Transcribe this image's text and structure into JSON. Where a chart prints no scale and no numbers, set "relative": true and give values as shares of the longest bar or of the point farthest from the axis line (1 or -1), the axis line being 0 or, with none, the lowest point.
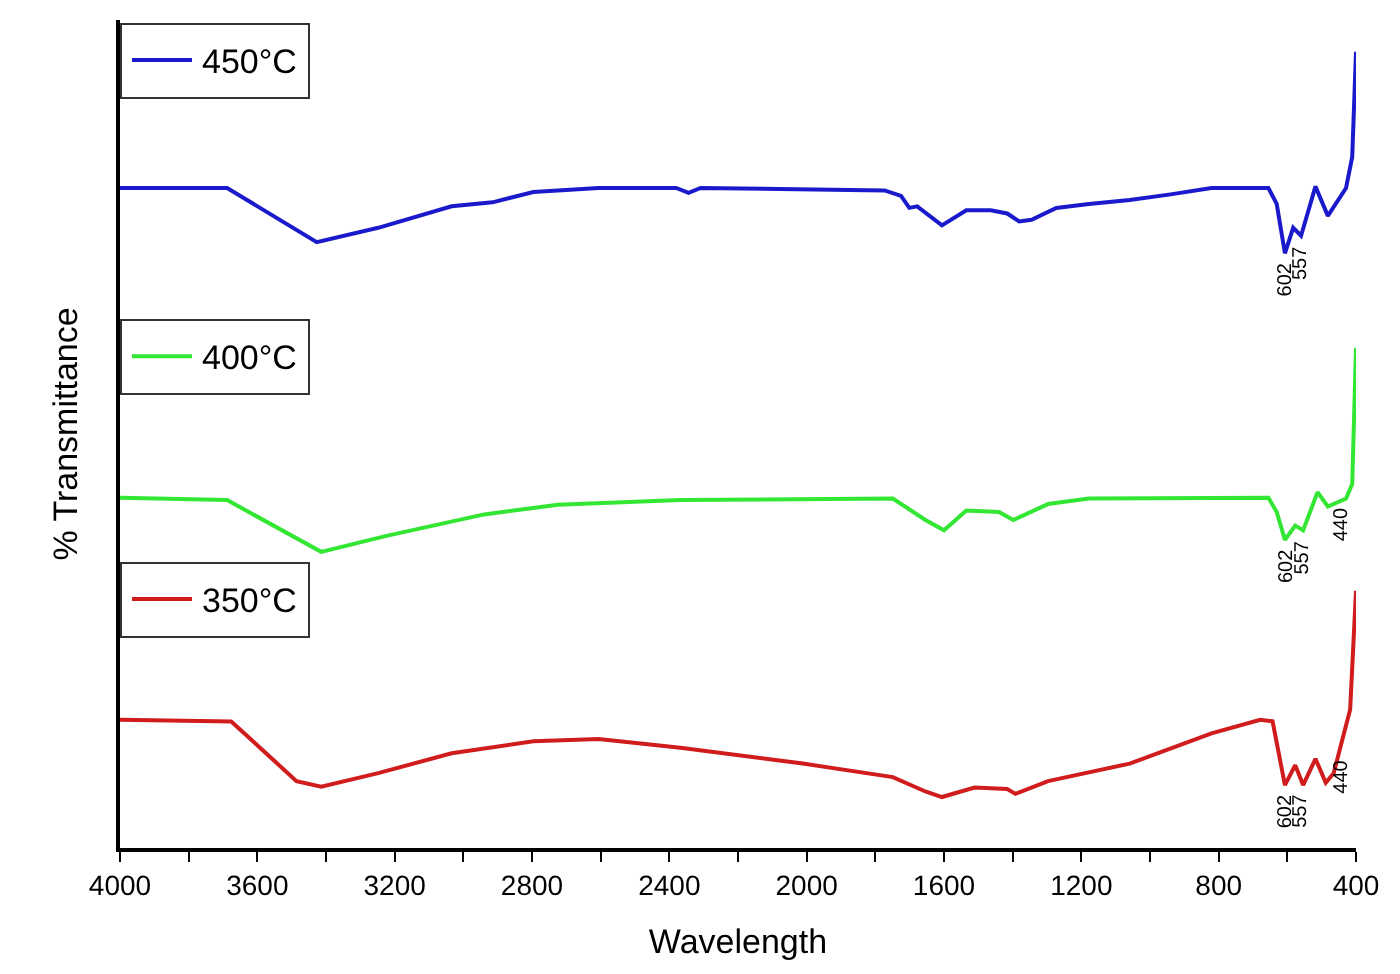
{
  "chart_data": {
    "type": "line",
    "relative": true,
    "xlabel": "Wavelength",
    "ylabel": "% Transmittance",
    "xlim": [
      4000,
      400
    ],
    "xticks": [
      4000,
      {
        "value": 3800,
        "label": null
      },
      3600,
      {
        "value": 3400,
        "label": null
      },
      3200,
      {
        "value": 3000,
        "label": null
      },
      2800,
      {
        "value": 2600,
        "label": null
      },
      2400,
      {
        "value": 2200,
        "label": null
      },
      2000,
      {
        "value": 1800,
        "label": null
      },
      1600,
      {
        "value": 1400,
        "label": null
      },
      1200,
      {
        "value": 1000,
        "label": null
      },
      800,
      {
        "value": 600,
        "label": null
      },
      400
    ],
    "legend": "top left",
    "marker": "none",
    "line_style": "solid",
    "series": [
      {
        "name": "450°C",
        "color": "#1a1acc",
        "x": [
          4000,
          3688,
          3427,
          3248,
          3034,
          2915,
          2796,
          2606,
          2380,
          2344,
          2309,
          1773,
          1725,
          1701,
          1678,
          1606,
          1535,
          1464,
          1416,
          1381,
          1345,
          1273,
          1178,
          1059,
          940,
          821,
          655,
          631,
          607,
          583,
          560,
          518,
          482,
          429,
          411,
          400
        ],
        "values": [
          0.829,
          0.829,
          0.761,
          0.779,
          0.806,
          0.811,
          0.824,
          0.829,
          0.829,
          0.823,
          0.829,
          0.826,
          0.819,
          0.804,
          0.806,
          0.782,
          0.801,
          0.801,
          0.797,
          0.787,
          0.789,
          0.804,
          0.809,
          0.814,
          0.821,
          0.829,
          0.829,
          0.809,
          0.747,
          0.779,
          0.769,
          0.831,
          0.794,
          0.829,
          0.868,
          1.0
        ]
      },
      {
        "name": "400°C",
        "color": "#33e633",
        "x": [
          4000,
          3688,
          3414,
          3224,
          2939,
          2725,
          2368,
          1749,
          1654,
          1600,
          1535,
          1440,
          1398,
          1297,
          1178,
          655,
          631,
          607,
          577,
          554,
          512,
          482,
          429,
          411,
          400
        ],
        "values": [
          0.44,
          0.437,
          0.372,
          0.392,
          0.419,
          0.431,
          0.437,
          0.439,
          0.412,
          0.399,
          0.424,
          0.422,
          0.412,
          0.432,
          0.439,
          0.44,
          0.422,
          0.387,
          0.405,
          0.399,
          0.447,
          0.429,
          0.439,
          0.457,
          0.628
        ]
      },
      {
        "name": "350°C",
        "color": "#d01c1c",
        "x": [
          4000,
          3676,
          3486,
          3414,
          3248,
          3034,
          2796,
          2606,
          2368,
          2011,
          1749,
          1654,
          1606,
          1511,
          1416,
          1392,
          1297,
          1059,
          821,
          679,
          643,
          607,
          577,
          554,
          518,
          488,
          465,
          447,
          417,
          400
        ],
        "values": [
          0.161,
          0.159,
          0.084,
          0.077,
          0.094,
          0.119,
          0.134,
          0.137,
          0.126,
          0.106,
          0.089,
          0.071,
          0.064,
          0.076,
          0.074,
          0.068,
          0.084,
          0.106,
          0.144,
          0.161,
          0.159,
          0.079,
          0.104,
          0.079,
          0.112,
          0.082,
          0.094,
          0.124,
          0.174,
          0.323
        ]
      }
    ],
    "annotations": [
      {
        "text": "602",
        "x": 602,
        "y": 0.74
      },
      {
        "text": "557",
        "x": 557,
        "y": 0.76
      },
      {
        "text": "602",
        "x": 602,
        "y": 0.38
      },
      {
        "text": "557",
        "x": 557,
        "y": 0.39
      },
      {
        "text": "440",
        "x": 440,
        "y": 0.432
      },
      {
        "text": "602",
        "x": 602,
        "y": 0.072
      },
      {
        "text": "557",
        "x": 557,
        "y": 0.072
      },
      {
        "text": "440",
        "x": 440,
        "y": 0.115
      }
    ]
  }
}
